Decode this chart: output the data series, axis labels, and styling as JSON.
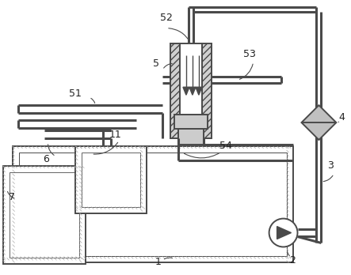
{
  "bg_color": "#ffffff",
  "line_color": "#4a4a4a",
  "label_color": "#222222",
  "lw": 1.4,
  "lw_thick": 2.2
}
